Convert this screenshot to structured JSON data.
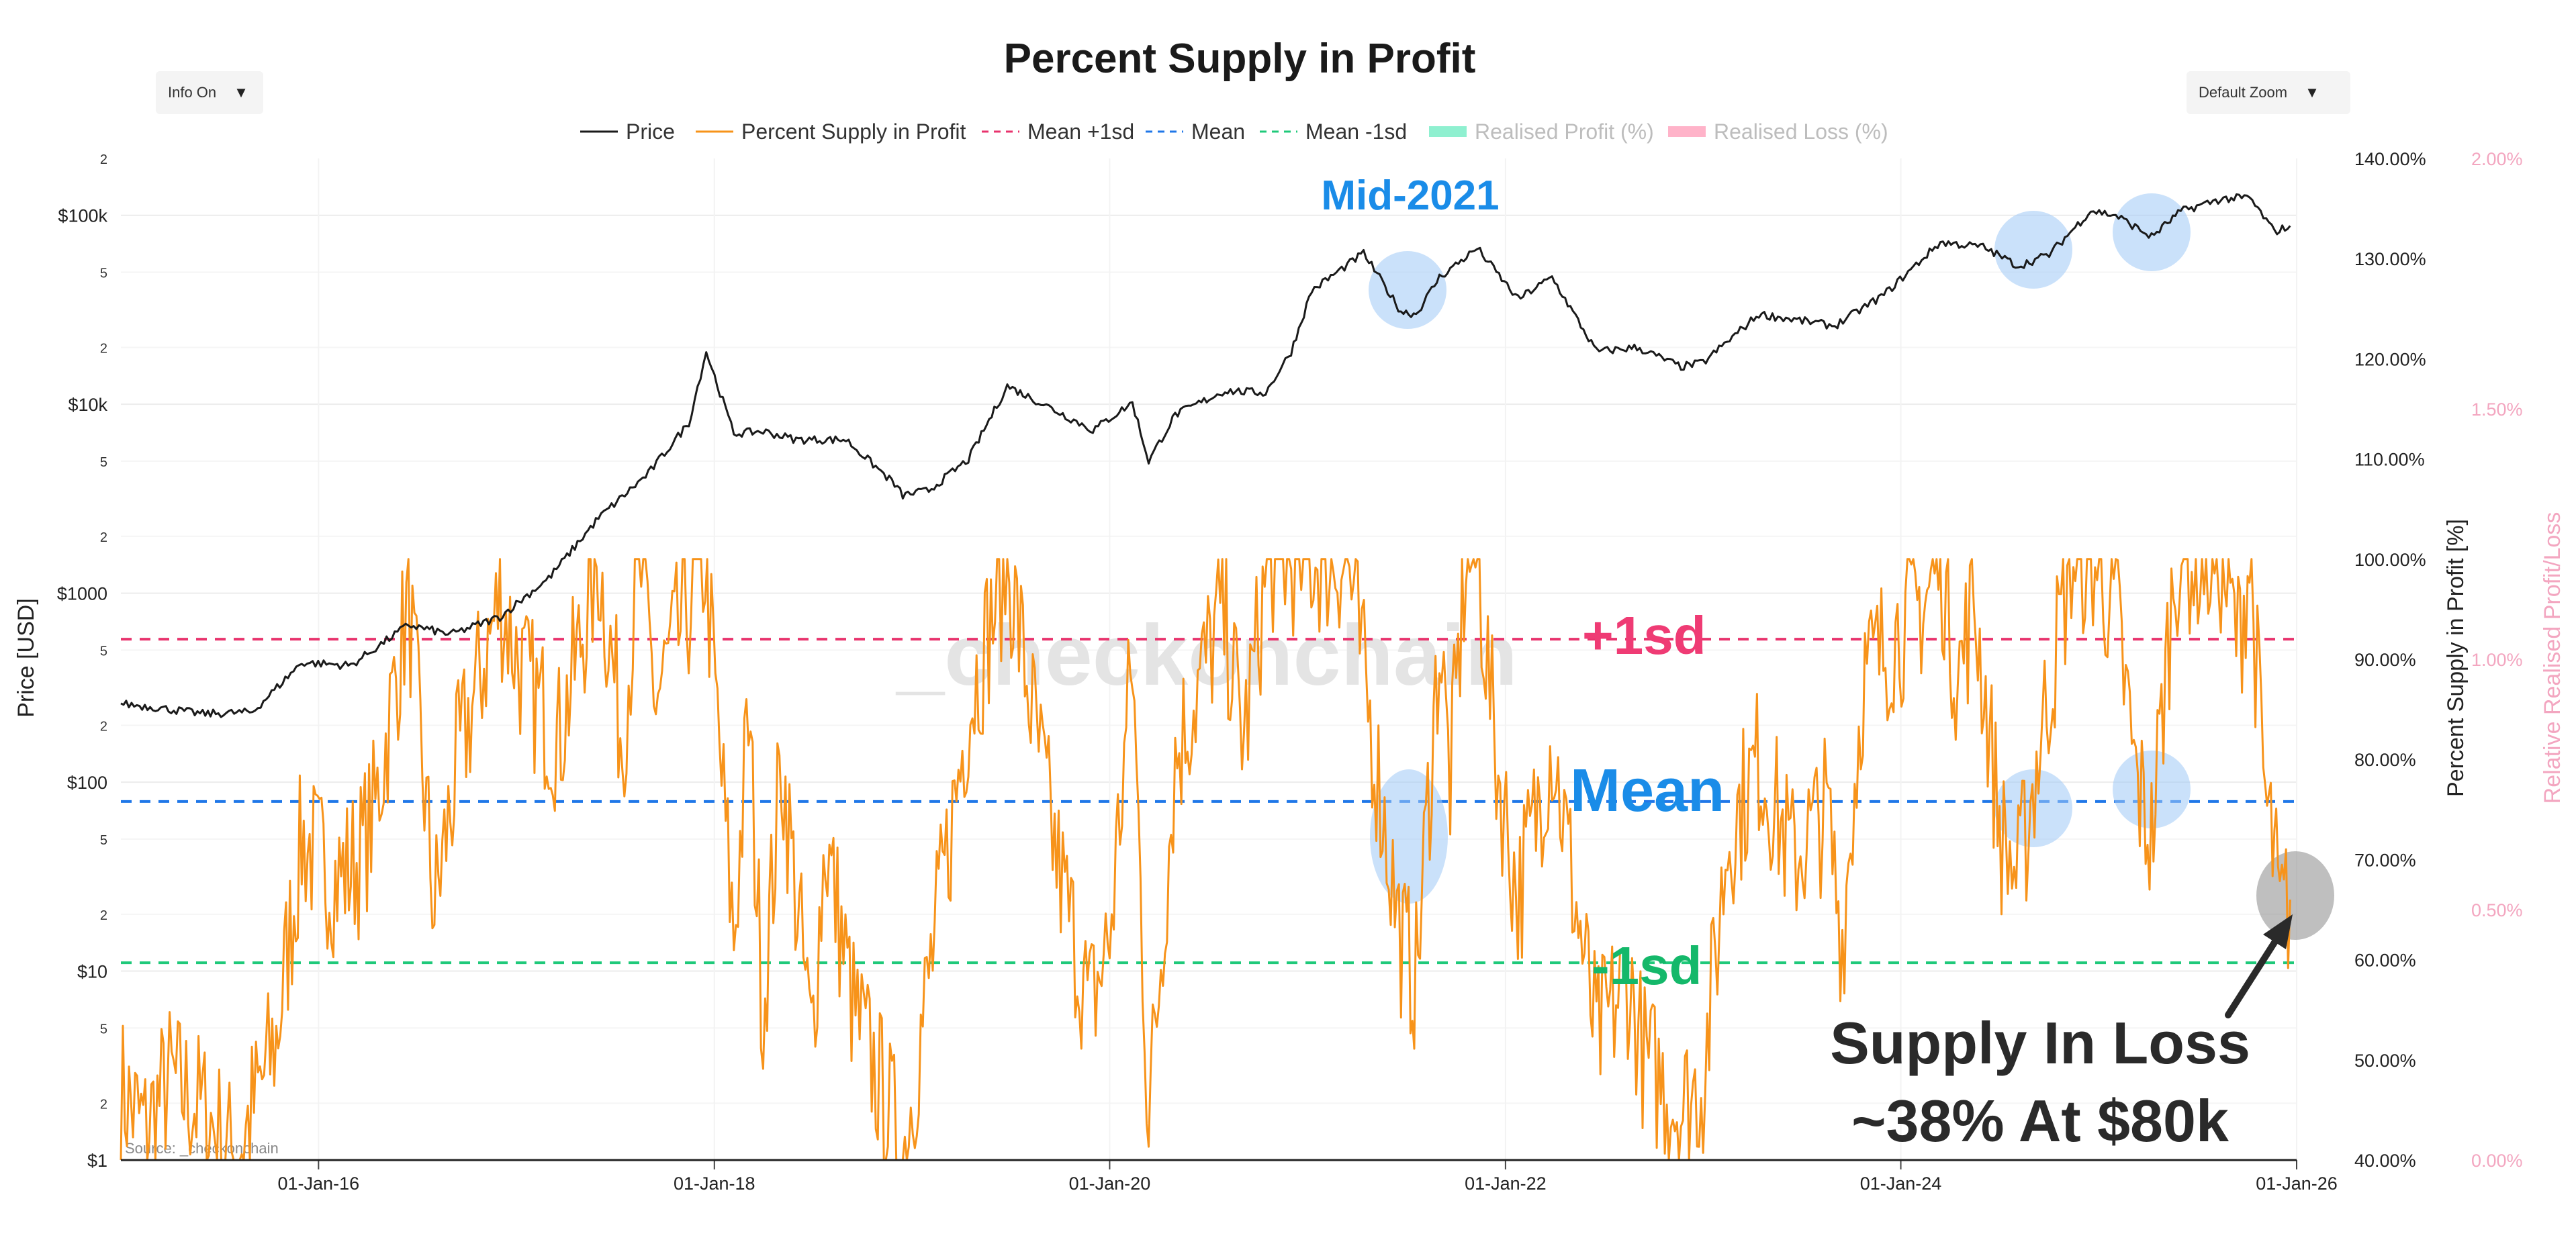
{
  "controls": {
    "info_label": "Info On",
    "zoom_label": "Default Zoom",
    "arrow": "▼"
  },
  "watermark": "_checkonchain",
  "source": "Source: _checkonchain",
  "annotations": {
    "mid_2021": "Mid-2021",
    "plus_1sd": "+1sd",
    "mean": "Mean",
    "minus_1sd": "-1sd",
    "callout_line1": "Supply In Loss",
    "callout_line2": "~38% At $80k"
  },
  "colors": {
    "price": "#1a1a1a",
    "supply": "#f7931a",
    "mean_plus_1sd": "#e8336d",
    "mean": "#1f77e8",
    "mean_minus_1sd": "#1fc97a",
    "realised_profit": "#8ff0d0",
    "realised_loss": "#ffb3c9",
    "highlight_blue": "#9ec9f5",
    "highlight_grey": "#8a8a8a",
    "annotation_blue": "#1a8ce8",
    "annotation_pink": "#ef3b74",
    "annotation_green": "#14b86a",
    "right_axis_pink": "#f3a6c0"
  },
  "chart_data": {
    "type": "line",
    "title": "Percent Supply in Profit",
    "legend_position": "top-center",
    "legend": [
      "Price",
      "Percent Supply in Profit",
      "Mean +1sd",
      "Mean",
      "Mean -1sd",
      "Realised Profit (%)",
      "Realised Loss (%)"
    ],
    "x_axis": {
      "type": "date",
      "range": [
        "2015-01-01",
        "2026-01-01"
      ],
      "ticks": [
        "01-Jan-16",
        "01-Jan-18",
        "01-Jan-20",
        "01-Jan-22",
        "01-Jan-24",
        "01-Jan-26"
      ]
    },
    "y_left": {
      "label": "Price [USD]",
      "scale": "log",
      "range": [
        1,
        200000
      ],
      "ticks": [
        "$1",
        "$10",
        "$100",
        "$1000",
        "$10k",
        "$100k"
      ],
      "minor_ticks": [
        "2",
        "5"
      ]
    },
    "y_right": {
      "label": "Percent Supply in Profit [%]",
      "range": [
        40,
        140
      ],
      "ticks": [
        "40.00%",
        "50.00%",
        "60.00%",
        "70.00%",
        "80.00%",
        "90.00%",
        "100.00%",
        "110.00%",
        "120.00%",
        "130.00%",
        "140.00%"
      ]
    },
    "y_right2": {
      "label": "Relative Realised Profit/Loss",
      "range": [
        0,
        2
      ],
      "ticks": [
        "0.00%",
        "0.50%",
        "1.00%",
        "1.50%",
        "2.00%"
      ]
    },
    "bands": {
      "mean_plus_1sd": 92,
      "mean": 75.8,
      "mean_minus_1sd": 59.7
    },
    "series": [
      {
        "name": "Price",
        "axis": "left",
        "points": [
          [
            "2015-01-01",
            260
          ],
          [
            "2015-03-01",
            250
          ],
          [
            "2015-06-01",
            230
          ],
          [
            "2015-09-01",
            235
          ],
          [
            "2015-12-01",
            430
          ],
          [
            "2016-03-01",
            415
          ],
          [
            "2016-06-15",
            680
          ],
          [
            "2016-09-01",
            605
          ],
          [
            "2016-12-01",
            750
          ],
          [
            "2017-03-01",
            1200
          ],
          [
            "2017-06-01",
            2500
          ],
          [
            "2017-09-01",
            4300
          ],
          [
            "2017-11-15",
            8000
          ],
          [
            "2017-12-17",
            19000
          ],
          [
            "2018-02-06",
            7000
          ],
          [
            "2018-04-01",
            7200
          ],
          [
            "2018-06-01",
            6500
          ],
          [
            "2018-09-01",
            6500
          ],
          [
            "2018-11-25",
            3900
          ],
          [
            "2018-12-15",
            3300
          ],
          [
            "2019-02-01",
            3500
          ],
          [
            "2019-04-15",
            5100
          ],
          [
            "2019-06-26",
            12500
          ],
          [
            "2019-09-01",
            10000
          ],
          [
            "2019-12-01",
            7300
          ],
          [
            "2020-02-12",
            10200
          ],
          [
            "2020-03-13",
            5000
          ],
          [
            "2020-05-01",
            8800
          ],
          [
            "2020-08-01",
            11800
          ],
          [
            "2020-10-15",
            11500
          ],
          [
            "2020-12-01",
            19000
          ],
          [
            "2021-01-08",
            40000
          ],
          [
            "2021-04-14",
            63000
          ],
          [
            "2021-06-22",
            31000
          ],
          [
            "2021-07-20",
            30000
          ],
          [
            "2021-09-01",
            47000
          ],
          [
            "2021-11-10",
            67000
          ],
          [
            "2022-01-24",
            36000
          ],
          [
            "2022-03-28",
            47000
          ],
          [
            "2022-06-18",
            19000
          ],
          [
            "2022-09-01",
            20000
          ],
          [
            "2022-11-21",
            15800
          ],
          [
            "2023-01-01",
            16600
          ],
          [
            "2023-04-14",
            30000
          ],
          [
            "2023-09-01",
            26000
          ],
          [
            "2023-12-01",
            38000
          ],
          [
            "2024-03-14",
            72000
          ],
          [
            "2024-06-01",
            68000
          ],
          [
            "2024-08-05",
            54000
          ],
          [
            "2024-10-01",
            62000
          ],
          [
            "2024-12-17",
            106000
          ],
          [
            "2025-02-01",
            100000
          ],
          [
            "2025-04-08",
            77000
          ],
          [
            "2025-06-01",
            105000
          ],
          [
            "2025-08-14",
            122000
          ],
          [
            "2025-10-06",
            124000
          ],
          [
            "2025-11-21",
            82000
          ],
          [
            "2025-12-20",
            88000
          ]
        ]
      },
      {
        "name": "Percent Supply in Profit",
        "axis": "right",
        "points": [
          [
            "2015-01-01",
            47
          ],
          [
            "2015-02-15",
            43
          ],
          [
            "2015-04-01",
            48
          ],
          [
            "2015-06-01",
            45
          ],
          [
            "2015-08-01",
            40
          ],
          [
            "2015-10-15",
            52
          ],
          [
            "2015-12-01",
            72
          ],
          [
            "2016-02-01",
            68
          ],
          [
            "2016-03-15",
            70
          ],
          [
            "2016-04-15",
            75
          ],
          [
            "2016-06-15",
            96
          ],
          [
            "2016-08-02",
            65
          ],
          [
            "2016-09-15",
            80
          ],
          [
            "2016-12-01",
            96
          ],
          [
            "2017-01-15",
            88
          ],
          [
            "2017-03-20",
            82
          ],
          [
            "2017-06-01",
            100
          ],
          [
            "2017-07-15",
            82
          ],
          [
            "2017-08-15",
            100
          ],
          [
            "2017-09-15",
            86
          ],
          [
            "2017-12-15",
            100
          ],
          [
            "2018-02-06",
            62
          ],
          [
            "2018-03-05",
            84
          ],
          [
            "2018-04-01",
            55
          ],
          [
            "2018-05-05",
            80
          ],
          [
            "2018-06-29",
            52
          ],
          [
            "2018-07-25",
            72
          ],
          [
            "2018-09-15",
            55
          ],
          [
            "2018-11-25",
            44
          ],
          [
            "2018-12-15",
            40
          ],
          [
            "2019-02-01",
            58
          ],
          [
            "2019-04-15",
            85
          ],
          [
            "2019-06-26",
            100
          ],
          [
            "2019-08-01",
            88
          ],
          [
            "2019-09-25",
            70
          ],
          [
            "2019-11-25",
            55
          ],
          [
            "2020-01-01",
            62
          ],
          [
            "2020-02-12",
            90
          ],
          [
            "2020-03-13",
            44
          ],
          [
            "2020-05-01",
            80
          ],
          [
            "2020-07-27",
            95
          ],
          [
            "2020-09-05",
            82
          ],
          [
            "2020-10-21",
            100
          ],
          [
            "2021-01-15",
            100
          ],
          [
            "2021-03-15",
            100
          ],
          [
            "2021-05-19",
            75
          ],
          [
            "2021-06-22",
            62
          ],
          [
            "2021-07-20",
            58
          ],
          [
            "2021-09-01",
            92
          ],
          [
            "2021-09-21",
            78
          ],
          [
            "2021-10-20",
            100
          ],
          [
            "2021-11-10",
            100
          ],
          [
            "2021-12-15",
            80
          ],
          [
            "2022-01-24",
            66
          ],
          [
            "2022-03-28",
            82
          ],
          [
            "2022-05-12",
            65
          ],
          [
            "2022-06-18",
            52
          ],
          [
            "2022-08-15",
            58
          ],
          [
            "2022-09-15",
            50
          ],
          [
            "2022-11-21",
            45
          ],
          [
            "2023-01-01",
            48
          ],
          [
            "2023-02-15",
            72
          ],
          [
            "2023-04-14",
            80
          ],
          [
            "2023-06-15",
            70
          ],
          [
            "2023-08-17",
            75
          ],
          [
            "2023-09-15",
            62
          ],
          [
            "2023-10-23",
            88
          ],
          [
            "2023-12-15",
            92
          ],
          [
            "2024-02-15",
            96
          ],
          [
            "2024-03-14",
            100
          ],
          [
            "2024-04-15",
            88
          ],
          [
            "2024-05-15",
            96
          ],
          [
            "2024-07-05",
            72
          ],
          [
            "2024-08-05",
            68
          ],
          [
            "2024-09-15",
            82
          ],
          [
            "2024-11-11",
            100
          ],
          [
            "2024-12-17",
            100
          ],
          [
            "2025-02-01",
            95
          ],
          [
            "2025-03-10",
            78
          ],
          [
            "2025-04-08",
            72
          ],
          [
            "2025-05-22",
            100
          ],
          [
            "2025-07-14",
            100
          ],
          [
            "2025-08-14",
            100
          ],
          [
            "2025-09-15",
            92
          ],
          [
            "2025-10-06",
            100
          ],
          [
            "2025-11-04",
            76
          ],
          [
            "2025-11-21",
            70
          ],
          [
            "2025-12-01",
            64
          ],
          [
            "2025-12-20",
            66
          ]
        ]
      }
    ]
  }
}
